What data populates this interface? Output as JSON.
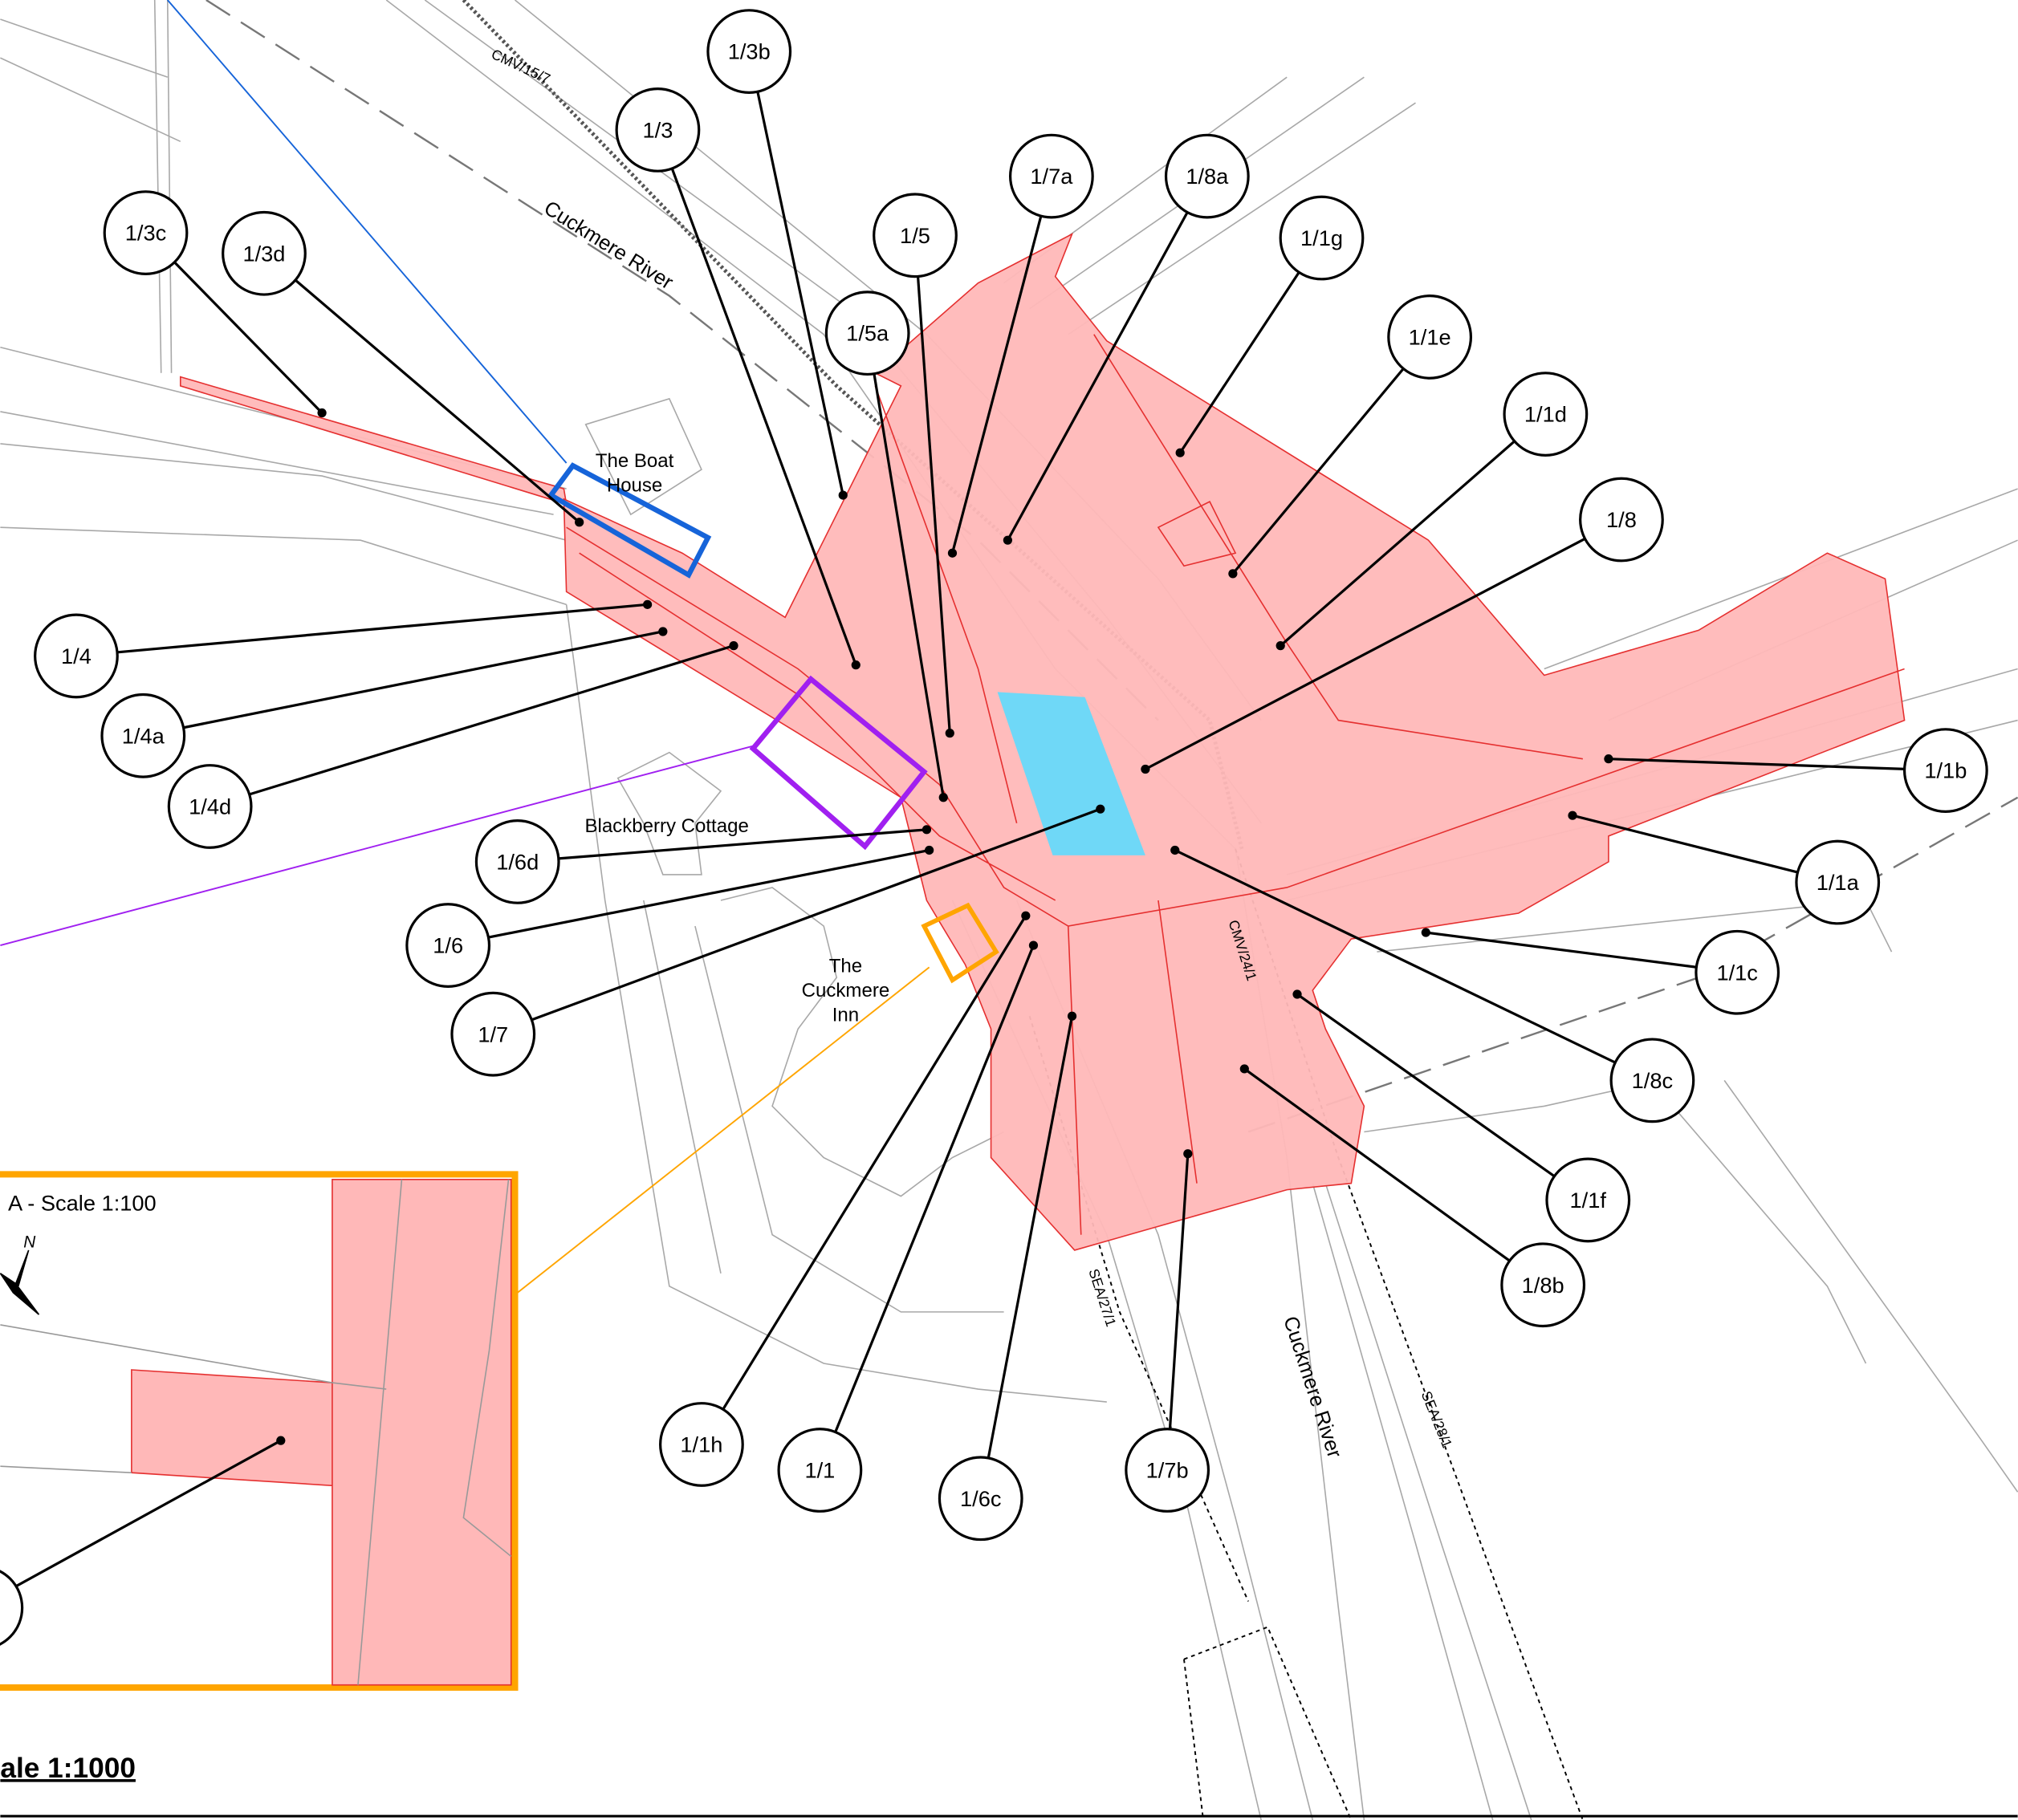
{
  "callouts": [
    "1/3b",
    "1/3",
    "1/3c",
    "1/3d",
    "1/5",
    "1/5a",
    "1/7a",
    "1/8a",
    "1/1g",
    "1/1e",
    "1/1d",
    "1/8",
    "1/4",
    "1/4a",
    "1/4d",
    "1/6d",
    "1/6",
    "1/7",
    "1/1b",
    "1/1a",
    "1/1c",
    "1/8c",
    "1/1f",
    "1/8b",
    "1/1h",
    "1/1",
    "1/6c",
    "1/7b"
  ],
  "places": {
    "boat_house": [
      "The Boat",
      "House"
    ],
    "blackberry_cottage": "Blackberry Cottage",
    "inn": [
      "The",
      "Cuckmere",
      "Inn"
    ]
  },
  "annotations": {
    "river_north": "Cuckmere River",
    "river_south": "Cuckmere River",
    "cmv_15_7": "CMV/15/7",
    "cmv_24_1": "CMV/24/1",
    "sea_27_1": "SEA/27/1",
    "sea_28_1": "SEA/28/1"
  },
  "inset": {
    "title": "A - Scale 1:100",
    "north": "N"
  },
  "scale": "ale 1:1000"
}
